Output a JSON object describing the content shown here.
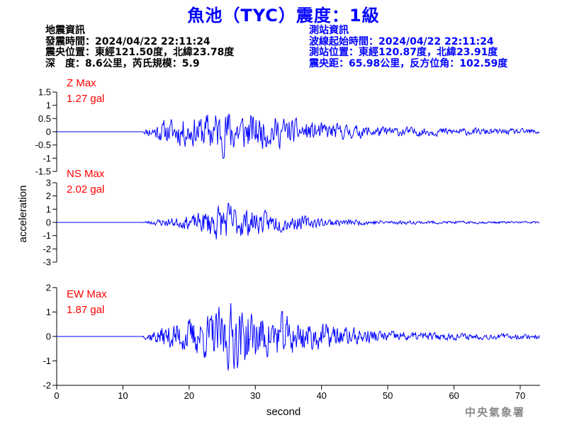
{
  "title": "魚池（TYC）震度：1級",
  "event_info": {
    "heading": "地震資訊",
    "origin_time": "發震時間：2024/04/22 22:11:24",
    "epicenter": "震央位置：東經121.50度，北緯23.78度",
    "depth_magnitude": "深　度：8.6公里，芮氏規模：5.9"
  },
  "station_info": {
    "heading": "測站資訊",
    "wave_start": "波線起始時間：2024/04/22 22:11:24",
    "location": "測站位置：東經120.87度，北緯23.91度",
    "distance": "震央距：65.98公里，反方位角：102.59度"
  },
  "credit": "中央氣象署",
  "colors": {
    "title": "#0000ff",
    "trace": "#0000ff",
    "max_label": "#ff0000",
    "axis": "#000000"
  },
  "chart_data": [
    {
      "type": "line",
      "component": "Z",
      "label_line1": "Z Max",
      "label_line2": "1.27 gal",
      "max_abs": 1.27,
      "ylim": [
        -1.5,
        1.5
      ],
      "yticks": [
        1.5,
        1,
        0.5,
        0,
        -0.5,
        -1,
        -1.5
      ],
      "ytick_labels": [
        "1.5",
        "1",
        "0.5",
        "0",
        "-0.5",
        "-1",
        "-1.5"
      ],
      "onset_s": 13.0,
      "envelope": [
        [
          13,
          0.05
        ],
        [
          14,
          0.3
        ],
        [
          16,
          0.55
        ],
        [
          18,
          0.7
        ],
        [
          21,
          0.75
        ],
        [
          23,
          1.0
        ],
        [
          26,
          1.2
        ],
        [
          28,
          1.0
        ],
        [
          31,
          0.8
        ],
        [
          34,
          0.75
        ],
        [
          37,
          0.55
        ],
        [
          40,
          0.45
        ],
        [
          44,
          0.35
        ],
        [
          50,
          0.25
        ],
        [
          58,
          0.2
        ],
        [
          66,
          0.15
        ],
        [
          73,
          0.14
        ]
      ],
      "seed": 11
    },
    {
      "type": "line",
      "component": "NS",
      "label_line1": "NS Max",
      "label_line2": "2.02 gal",
      "max_abs": 2.02,
      "ylim": [
        -3,
        3
      ],
      "yticks": [
        3,
        2,
        1,
        0,
        -1,
        -2,
        -3
      ],
      "ytick_labels": [
        "3",
        "2",
        "1",
        "0",
        "-1",
        "-2",
        "-3"
      ],
      "onset_s": 13.0,
      "envelope": [
        [
          13,
          0.05
        ],
        [
          14,
          0.2
        ],
        [
          16,
          0.4
        ],
        [
          18,
          0.5
        ],
        [
          21,
          0.8
        ],
        [
          24,
          1.8
        ],
        [
          26,
          2.0
        ],
        [
          28,
          1.5
        ],
        [
          31,
          1.1
        ],
        [
          34,
          0.9
        ],
        [
          37,
          0.7
        ],
        [
          40,
          0.45
        ],
        [
          44,
          0.3
        ],
        [
          50,
          0.2
        ],
        [
          58,
          0.15
        ],
        [
          66,
          0.12
        ],
        [
          73,
          0.12
        ]
      ],
      "seed": 23
    },
    {
      "type": "line",
      "component": "EW",
      "label_line1": "EW Max",
      "label_line2": "1.87 gal",
      "max_abs": 1.87,
      "ylim": [
        -2,
        2
      ],
      "yticks": [
        2,
        1,
        0,
        -1,
        -2
      ],
      "ytick_labels": [
        "2",
        "1",
        "0",
        "-1",
        "-2"
      ],
      "onset_s": 13.0,
      "envelope": [
        [
          13,
          0.05
        ],
        [
          14,
          0.3
        ],
        [
          16,
          0.55
        ],
        [
          18,
          0.8
        ],
        [
          21,
          1.0
        ],
        [
          24,
          1.4
        ],
        [
          26,
          1.8
        ],
        [
          28,
          1.6
        ],
        [
          31,
          1.2
        ],
        [
          34,
          1.2
        ],
        [
          37,
          0.9
        ],
        [
          40,
          0.7
        ],
        [
          44,
          0.5
        ],
        [
          50,
          0.3
        ],
        [
          58,
          0.2
        ],
        [
          66,
          0.15
        ],
        [
          73,
          0.14
        ]
      ],
      "seed": 37
    }
  ],
  "x_axis": {
    "label": "second",
    "xlim": [
      0,
      73
    ],
    "ticks": [
      0,
      10,
      20,
      30,
      40,
      50,
      60,
      70
    ],
    "tick_labels": [
      "0",
      "10",
      "20",
      "30",
      "40",
      "50",
      "60",
      "70"
    ]
  },
  "y_axis_label": "acceleration"
}
